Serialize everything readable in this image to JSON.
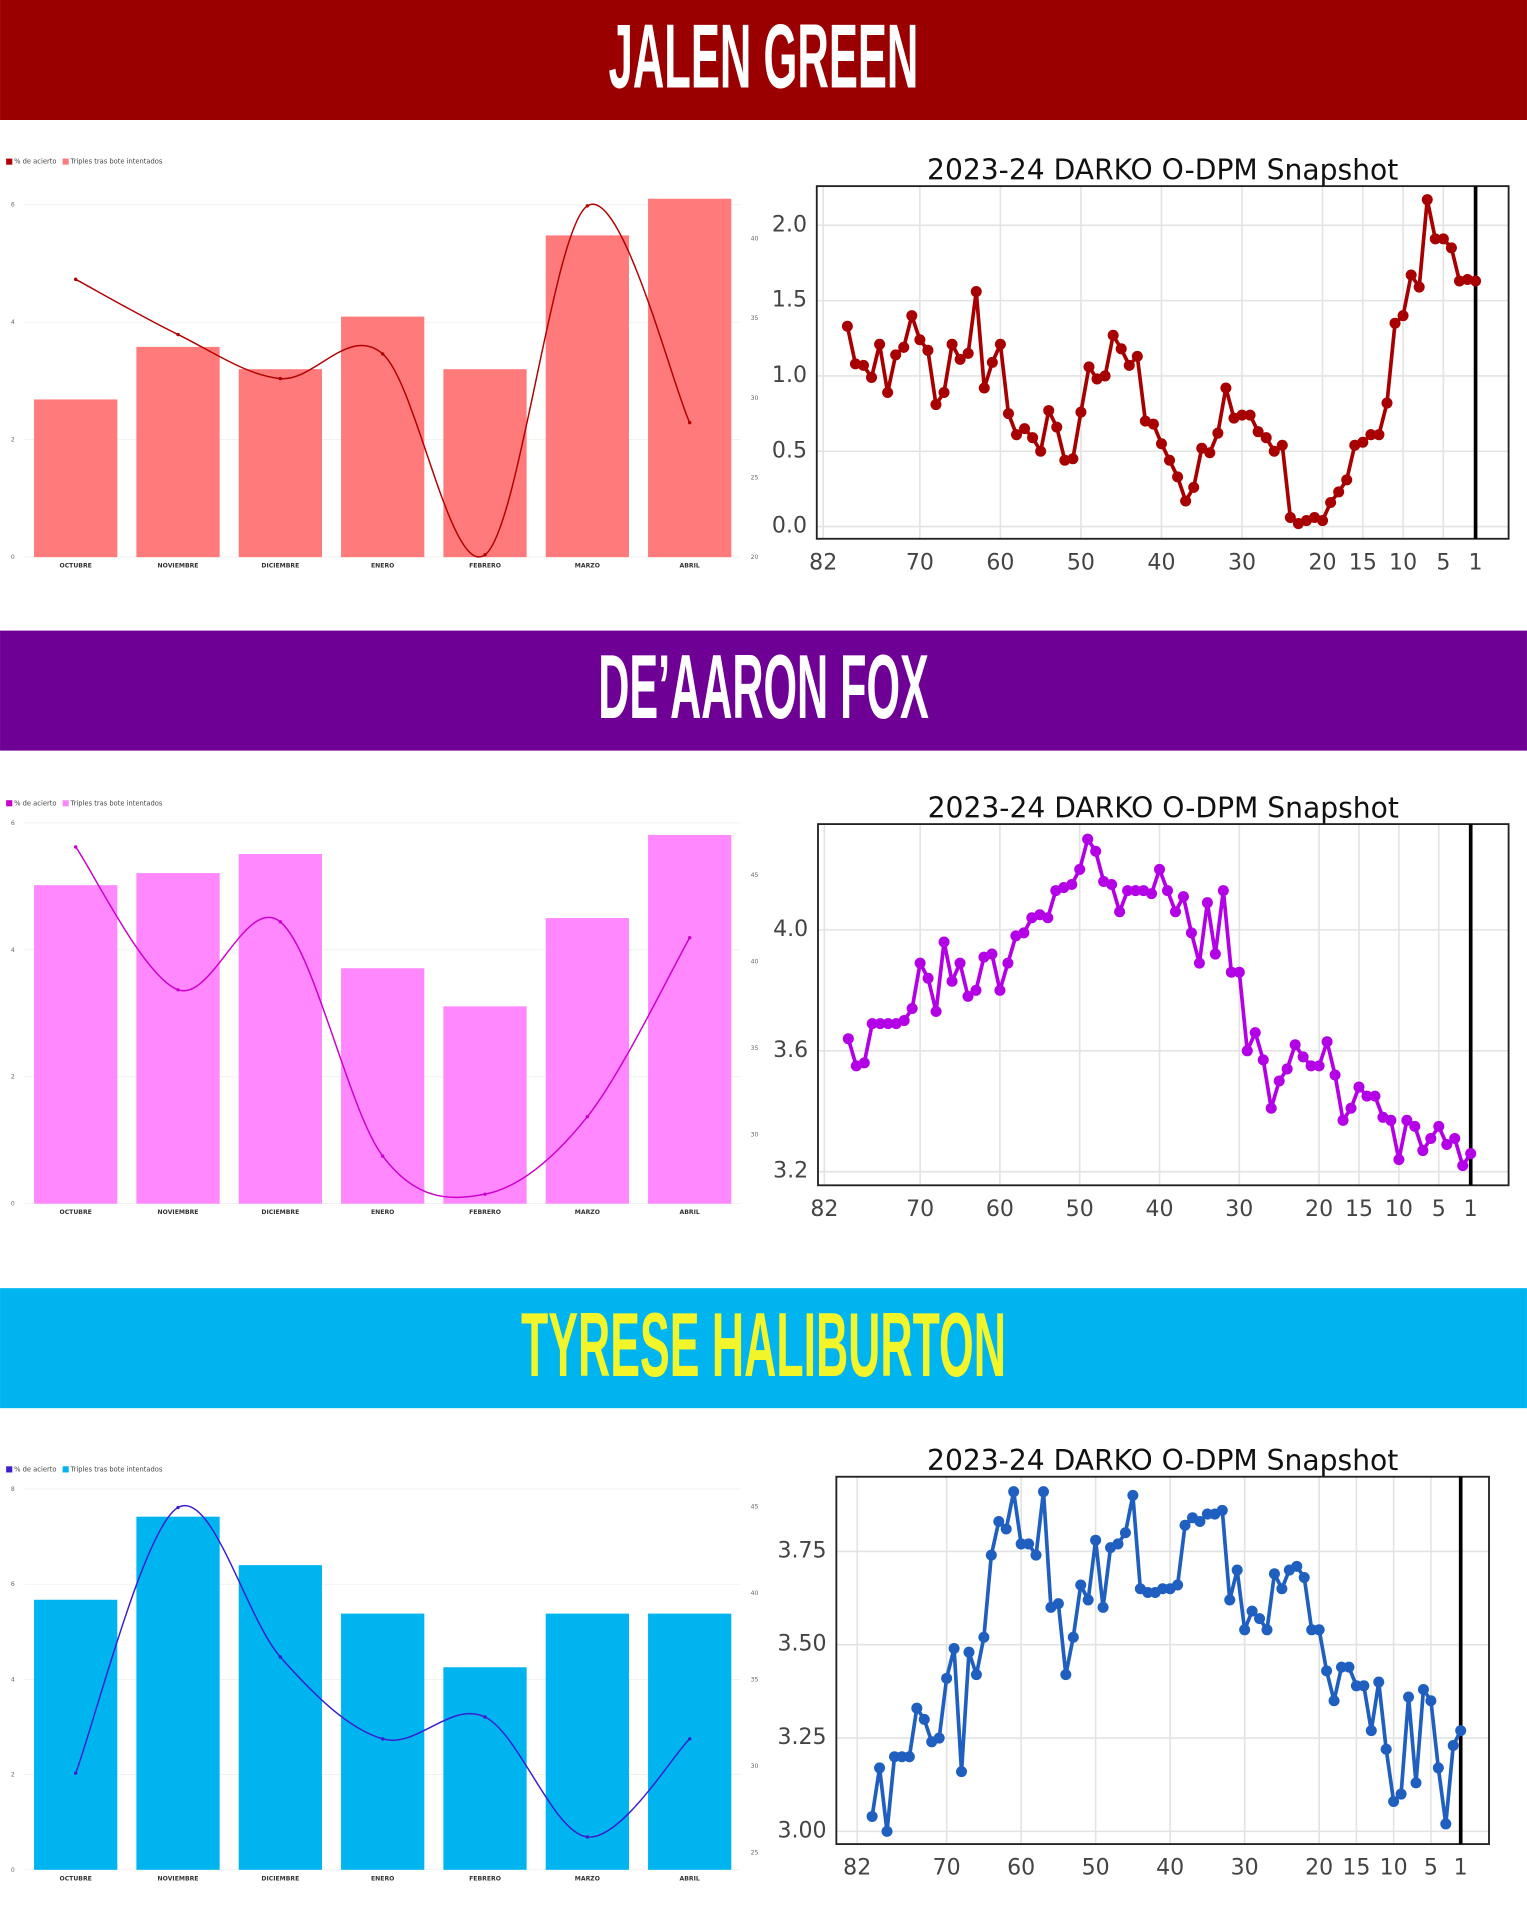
{
  "sections": [
    {
      "banner": "JALEN GREEN",
      "banner_color": "#9b0000",
      "banner_text_color": "#ffffff",
      "chart_data": [
        {
          "type": "bar-line",
          "legend": "upper left",
          "grid": true,
          "categories": [
            "OCTUBRE",
            "NOVIEMBRE",
            "DICIEMBRE",
            "ENERO",
            "FEBRERO",
            "MARZO",
            "ABRIL"
          ],
          "series": [
            {
              "name": "% de acierto",
              "type": "line",
              "color": "#b30000",
              "values": [
                4.73,
                3.79,
                3.04,
                3.46,
                0.04,
                5.98,
                2.29
              ]
            },
            {
              "name": "Triples tras bote intentados",
              "type": "bar",
              "axis": "y2",
              "color": "#ff7b7b",
              "values": [
                29.9,
                33.2,
                31.8,
                35.1,
                31.8,
                40.2,
                42.5
              ]
            }
          ],
          "ylim": [
            0,
            6.4
          ],
          "yticks": [
            0,
            2,
            4,
            6
          ],
          "y2lim": [
            20,
            43.6
          ],
          "y2ticks": [
            20,
            25,
            30,
            35,
            40
          ]
        },
        {
          "type": "line",
          "title": "2023-24 DARKO O-DPM Snapshot",
          "grid": true,
          "vline": 1,
          "x": [
            79,
            78,
            77,
            76,
            75,
            74,
            73,
            72,
            71,
            70,
            69,
            68,
            67,
            66,
            65,
            64,
            63,
            62,
            61,
            60,
            59,
            58,
            57,
            56,
            55,
            54,
            53,
            52,
            51,
            50,
            49,
            48,
            47,
            46,
            45,
            44,
            43,
            42,
            41,
            40,
            39,
            38,
            37,
            36,
            35,
            34,
            33,
            32,
            31,
            30,
            29,
            28,
            27,
            26,
            25,
            24,
            23,
            22,
            21,
            20,
            19,
            18,
            17,
            16,
            15,
            14,
            13,
            12,
            11,
            10,
            9,
            8,
            7,
            6,
            5,
            4,
            3,
            2,
            1
          ],
          "series": [
            {
              "color": "#a80000",
              "values": [
                1.33,
                1.08,
                1.07,
                0.99,
                1.21,
                0.89,
                1.14,
                1.19,
                1.4,
                1.24,
                1.17,
                0.81,
                0.89,
                1.21,
                1.11,
                1.15,
                1.56,
                0.92,
                1.09,
                1.21,
                0.75,
                0.61,
                0.65,
                0.59,
                0.5,
                0.77,
                0.66,
                0.44,
                0.45,
                0.76,
                1.06,
                0.98,
                1.0,
                1.27,
                1.18,
                1.07,
                1.13,
                0.7,
                0.68,
                0.55,
                0.44,
                0.33,
                0.17,
                0.26,
                0.52,
                0.49,
                0.62,
                0.92,
                0.72,
                0.74,
                0.74,
                0.63,
                0.59,
                0.5,
                0.54,
                0.06,
                0.02,
                0.04,
                0.06,
                0.04,
                0.16,
                0.23,
                0.31,
                0.54,
                0.56,
                0.61,
                0.61,
                0.82,
                1.35,
                1.4,
                1.67,
                1.59,
                2.17,
                1.91,
                1.91,
                1.85,
                1.63,
                1.64,
                1.63
              ]
            }
          ],
          "xlim": [
            82.8,
            -3.1
          ],
          "xticks": [
            82,
            70,
            60,
            50,
            40,
            30,
            20,
            15,
            10,
            5,
            1
          ],
          "ylim": [
            -0.081,
            2.26
          ],
          "yticks": [
            {
              "value": 0,
              "label": "0.0"
            },
            0.5,
            {
              "value": 1,
              "label": "1.0"
            },
            1.5,
            {
              "value": 2,
              "label": "2.0"
            }
          ]
        }
      ]
    },
    {
      "banner": "DE’AARON FOX",
      "banner_color": "#6e0096",
      "banner_text_color": "#ffffff",
      "chart_data": [
        {
          "type": "bar-line",
          "legend": "upper left",
          "grid": true,
          "categories": [
            "OCTUBRE",
            "NOVIEMBRE",
            "DICIEMBRE",
            "ENERO",
            "FEBRERO",
            "MARZO",
            "ABRIL"
          ],
          "series": [
            {
              "name": "% de acierto",
              "type": "line",
              "color": "#cc00cc",
              "values": [
                5.62,
                3.37,
                4.44,
                0.75,
                0.15,
                1.37,
                4.19
              ]
            },
            {
              "name": "Triples tras bote intentados",
              "type": "bar",
              "axis": "y2",
              "color": "#ff88ff",
              "values": [
                44.4,
                45.1,
                46.2,
                39.6,
                37.4,
                42.5,
                47.3
              ]
            }
          ],
          "ylim": [
            0,
            6
          ],
          "yticks": [
            0,
            2,
            4,
            6
          ],
          "y2lim": [
            26,
            48
          ],
          "y2ticks": [
            30,
            35,
            40,
            45
          ]
        },
        {
          "type": "line",
          "title": "2023-24 DARKO O-DPM Snapshot",
          "grid": true,
          "vline": 1,
          "x": [
            79,
            78,
            77,
            76,
            75,
            74,
            73,
            72,
            71,
            70,
            69,
            68,
            67,
            66,
            65,
            64,
            63,
            62,
            61,
            60,
            59,
            58,
            57,
            56,
            55,
            54,
            53,
            52,
            51,
            50,
            49,
            48,
            47,
            46,
            45,
            44,
            43,
            42,
            41,
            40,
            39,
            38,
            37,
            36,
            35,
            34,
            33,
            32,
            31,
            30,
            29,
            28,
            27,
            26,
            25,
            24,
            23,
            22,
            21,
            20,
            19,
            18,
            17,
            16,
            15,
            14,
            13,
            12,
            11,
            10,
            9,
            8,
            7,
            6,
            5,
            4,
            3,
            2,
            1
          ],
          "series": [
            {
              "color": "#b400e6",
              "values": [
                3.64,
                3.55,
                3.56,
                3.69,
                3.69,
                3.69,
                3.69,
                3.7,
                3.74,
                3.89,
                3.84,
                3.73,
                3.96,
                3.83,
                3.89,
                3.78,
                3.8,
                3.91,
                3.92,
                3.8,
                3.89,
                3.98,
                3.99,
                4.04,
                4.05,
                4.04,
                4.13,
                4.14,
                4.15,
                4.2,
                4.3,
                4.26,
                4.16,
                4.15,
                4.06,
                4.13,
                4.13,
                4.13,
                4.12,
                4.2,
                4.13,
                4.06,
                4.11,
                3.99,
                3.89,
                4.09,
                3.92,
                4.13,
                3.86,
                3.86,
                3.6,
                3.66,
                3.57,
                3.41,
                3.5,
                3.54,
                3.62,
                3.58,
                3.55,
                3.55,
                3.63,
                3.52,
                3.37,
                3.41,
                3.48,
                3.45,
                3.45,
                3.38,
                3.37,
                3.24,
                3.37,
                3.35,
                3.27,
                3.31,
                3.35,
                3.29,
                3.31,
                3.22,
                3.26
              ]
            }
          ],
          "xlim": [
            82.8,
            -3.75
          ],
          "xticks": [
            82,
            70,
            60,
            50,
            40,
            30,
            20,
            15,
            10,
            5,
            1
          ],
          "ylim": [
            3.155,
            4.35
          ],
          "yticks": [
            3.2,
            3.6,
            {
              "value": 4,
              "label": "4.0"
            }
          ]
        }
      ]
    },
    {
      "banner": "TYRESE HALIBURTON",
      "banner_color": "#00b4f0",
      "banner_text_color": "#f2f52a",
      "chart_data": [
        {
          "type": "bar-line",
          "legend": "upper left",
          "grid": true,
          "categories": [
            "OCTUBRE",
            "NOVIEMBRE",
            "DICIEMBRE",
            "ENERO",
            "FEBRERO",
            "MARZO",
            "ABRIL"
          ],
          "series": [
            {
              "name": "% de acierto",
              "type": "line",
              "color": "#3a1fd0",
              "values": [
                2.03,
                7.61,
                4.47,
                2.75,
                3.21,
                0.69,
                2.75
              ]
            },
            {
              "name": "Triples tras bote intentados",
              "type": "bar",
              "axis": "y2",
              "color": "#00b4f0",
              "values": [
                39.6,
                44.4,
                41.6,
                38.8,
                35.7,
                38.8,
                38.8
              ]
            }
          ],
          "ylim": [
            0,
            8
          ],
          "yticks": [
            0,
            2,
            4,
            6,
            8
          ],
          "y2lim": [
            24,
            46
          ],
          "y2ticks": [
            25,
            30,
            35,
            40,
            45
          ]
        },
        {
          "type": "line",
          "title": "2023-24 DARKO O-DPM Snapshot",
          "grid": true,
          "vline": 1,
          "x": [
            80,
            79,
            78,
            77,
            76,
            75,
            74,
            73,
            72,
            71,
            70,
            69,
            68,
            67,
            66,
            65,
            64,
            63,
            62,
            61,
            60,
            59,
            58,
            57,
            56,
            55,
            54,
            53,
            52,
            51,
            50,
            49,
            48,
            47,
            46,
            45,
            44,
            43,
            42,
            41,
            40,
            39,
            38,
            37,
            36,
            35,
            34,
            33,
            32,
            31,
            30,
            29,
            28,
            27,
            26,
            25,
            24,
            23,
            22,
            21,
            20,
            19,
            18,
            17,
            16,
            15,
            14,
            13,
            12,
            11,
            10,
            9,
            8,
            7,
            6,
            5,
            4,
            3,
            2,
            1
          ],
          "series": [
            {
              "color": "#1f5fc0",
              "values": [
                3.04,
                3.17,
                3.0,
                3.2,
                3.2,
                3.2,
                3.33,
                3.3,
                3.24,
                3.25,
                3.41,
                3.49,
                3.16,
                3.48,
                3.42,
                3.52,
                3.74,
                3.83,
                3.81,
                3.91,
                3.77,
                3.77,
                3.74,
                3.91,
                3.6,
                3.61,
                3.42,
                3.52,
                3.66,
                3.62,
                3.78,
                3.6,
                3.76,
                3.77,
                3.8,
                3.9,
                3.65,
                3.64,
                3.64,
                3.65,
                3.65,
                3.66,
                3.82,
                3.84,
                3.83,
                3.85,
                3.85,
                3.86,
                3.62,
                3.7,
                3.54,
                3.59,
                3.57,
                3.54,
                3.69,
                3.65,
                3.7,
                3.71,
                3.68,
                3.54,
                3.54,
                3.43,
                3.35,
                3.44,
                3.44,
                3.39,
                3.39,
                3.27,
                3.4,
                3.22,
                3.08,
                3.1,
                3.36,
                3.13,
                3.38,
                3.35,
                3.17,
                3.02,
                3.23,
                3.27
              ]
            }
          ],
          "xlim": [
            84.8,
            -2.8
          ],
          "xticks": [
            82,
            70,
            60,
            50,
            40,
            30,
            20,
            15,
            10,
            5,
            1
          ],
          "ylim": [
            2.966,
            3.95
          ],
          "yticks": [
            {
              "value": 3,
              "label": "3.00"
            },
            {
              "value": 3.25,
              "label": "3.25"
            },
            {
              "value": 3.5,
              "label": "3.50"
            },
            {
              "value": 3.75,
              "label": "3.75"
            }
          ]
        }
      ]
    }
  ]
}
